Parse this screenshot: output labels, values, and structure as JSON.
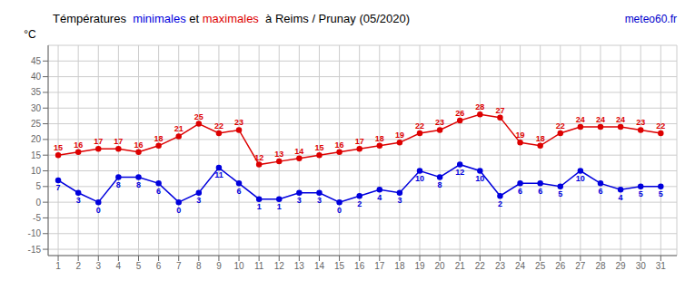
{
  "chart_data": {
    "type": "line",
    "title": "Témpératures  minimales et maximales  à Reims / Prunay (05/2020)",
    "ylabel": "°C",
    "annotations": [
      {
        "text": "meteo60.fr",
        "color": "#0000cc"
      }
    ],
    "x": [
      1,
      2,
      3,
      4,
      5,
      6,
      7,
      8,
      9,
      10,
      11,
      12,
      13,
      14,
      15,
      16,
      17,
      18,
      19,
      20,
      21,
      22,
      23,
      24,
      25,
      26,
      27,
      28,
      29,
      30,
      31
    ],
    "series": [
      {
        "name": "minimales",
        "color": "#0000dd",
        "marker": "circle",
        "values": [
          7,
          3,
          0,
          8,
          8,
          6,
          0,
          3,
          11,
          6,
          1,
          1,
          3,
          3,
          0,
          2,
          4,
          3,
          10,
          8,
          12,
          10,
          2,
          6,
          6,
          5,
          10,
          6,
          4,
          5,
          5
        ]
      },
      {
        "name": "maximales",
        "color": "#dd0000",
        "marker": "circle",
        "values": [
          15,
          16,
          17,
          17,
          16,
          18,
          21,
          25,
          22,
          23,
          12,
          13,
          14,
          15,
          16,
          17,
          18,
          19,
          22,
          23,
          26,
          28,
          27,
          19,
          18,
          22,
          24,
          24,
          24,
          23,
          22
        ]
      }
    ],
    "xlim": [
      0.5,
      31.8
    ],
    "xticks": [
      1,
      2,
      3,
      4,
      5,
      6,
      7,
      8,
      9,
      10,
      11,
      12,
      13,
      14,
      15,
      16,
      17,
      18,
      19,
      20,
      21,
      22,
      23,
      24,
      25,
      26,
      27,
      28,
      29,
      30,
      31
    ],
    "ylim": [
      -17,
      50
    ],
    "yticks": [
      -15,
      -10,
      -5,
      0,
      5,
      10,
      15,
      20,
      25,
      30,
      35,
      40,
      45
    ],
    "grid": true,
    "data_labels": true
  }
}
